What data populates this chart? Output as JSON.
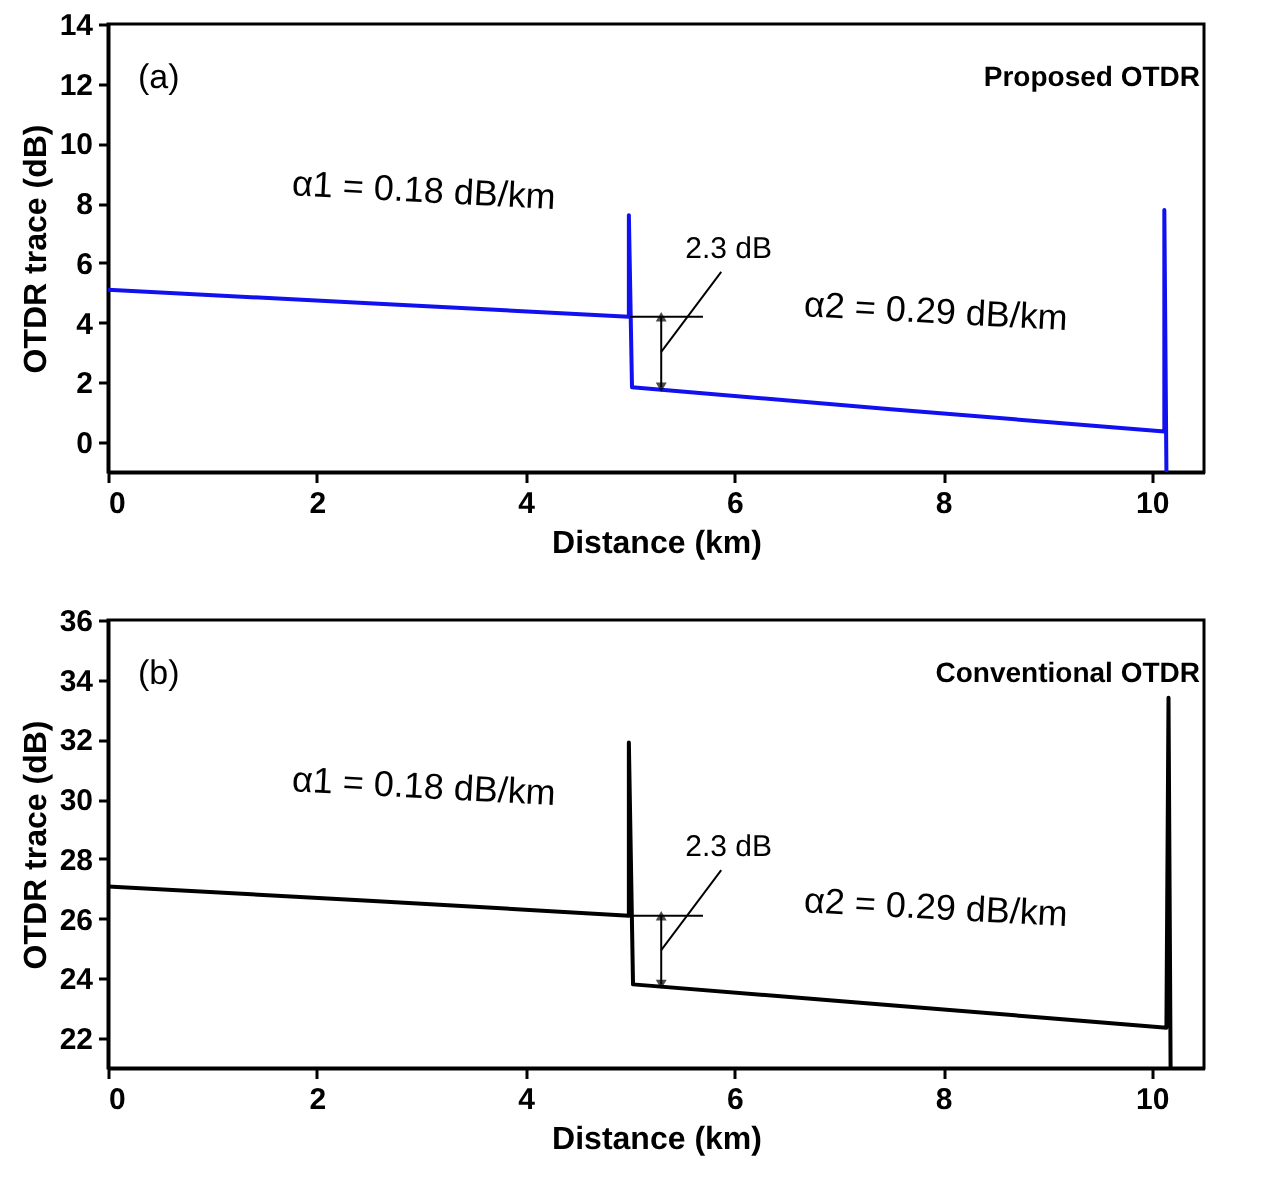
{
  "chart_data": [
    {
      "type": "line",
      "xlabel": "Distance (km)",
      "ylabel": "OTDR trace (dB)",
      "xlim": [
        0,
        10.5
      ],
      "xticks": [
        0,
        2,
        4,
        6,
        8,
        10
      ],
      "ylim": [
        -1,
        14
      ],
      "yticks": [
        0,
        2,
        4,
        6,
        8,
        10,
        12,
        14
      ],
      "series": [
        {
          "color": "#1010f0",
          "x": [
            0,
            2.5,
            4.99,
            4.99,
            5.02,
            7.5,
            10.12,
            10.12,
            10.14
          ],
          "values": [
            5.1,
            4.65,
            4.2,
            7.6,
            1.84,
            1.1,
            0.36,
            7.77,
            -1
          ]
        }
      ],
      "annotations": [
        "(a)",
        "Proposed OTDR",
        "α1 = 0.18 dB/km",
        {
          "text": "2.3 dB",
          "x": 5.3,
          "y": 4.2
        },
        "α2 = 0.29 dB/km"
      ]
    },
    {
      "type": "line",
      "xlabel": "Distance (km)",
      "ylabel": "OTDR trace (dB)",
      "xlim": [
        0,
        10.5
      ],
      "xticks": [
        0,
        2,
        4,
        6,
        8,
        10
      ],
      "ylim": [
        21,
        36
      ],
      "yticks": [
        22,
        24,
        26,
        28,
        30,
        32,
        34,
        36
      ],
      "series": [
        {
          "color": "#000000",
          "x": [
            0,
            2.5,
            4.99,
            4.99,
            5.03,
            7.5,
            10.14,
            10.16,
            10.18
          ],
          "values": [
            27.08,
            26.6,
            26.1,
            31.9,
            23.8,
            23.1,
            22.35,
            33.4,
            21
          ]
        }
      ],
      "annotations": [
        "(b)",
        "Conventional OTDR",
        "α1 = 0.18 dB/km",
        {
          "text": "2.3 dB",
          "x": 5.3,
          "y": 26.1
        },
        "α2 = 0.29 dB/km"
      ]
    }
  ]
}
